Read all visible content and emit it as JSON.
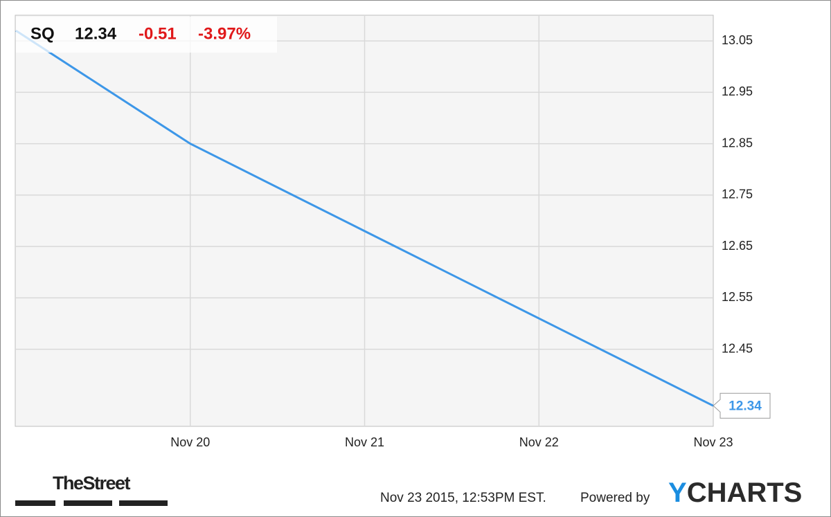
{
  "header": {
    "ticker": "SQ",
    "price": "12.34",
    "change": "-0.51",
    "change_pct": "-3.97%"
  },
  "chart_data": {
    "type": "line",
    "categories": [
      null,
      "Nov 20",
      "Nov 21",
      "Nov 22",
      "Nov 23"
    ],
    "series": [
      {
        "color": "#3d97e8",
        "values": [
          13.07,
          12.85,
          12.68,
          12.51,
          12.34
        ]
      }
    ],
    "ylim": [
      12.3,
      13.1
    ],
    "yticks": [
      12.45,
      12.55,
      12.65,
      12.75,
      12.85,
      12.95,
      13.05
    ],
    "grid": true,
    "last_value_label": true
  },
  "footer": {
    "source_logo": "TheStreet",
    "timestamp": "Nov 23 2015, 12:53PM EST.",
    "powered_by": "Powered by",
    "logo_first": "Y",
    "logo_rest": "CHARTS"
  }
}
